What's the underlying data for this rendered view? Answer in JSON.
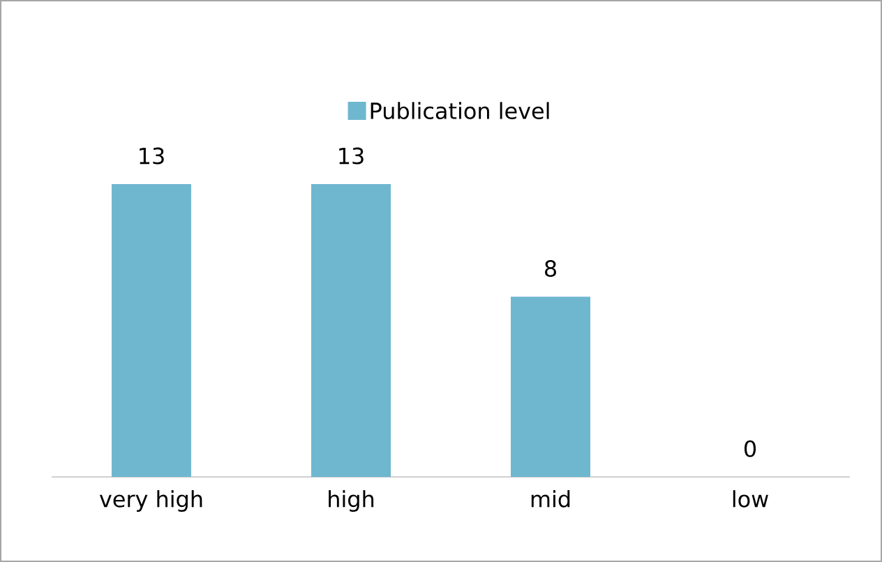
{
  "chart_data": {
    "type": "bar",
    "categories": [
      "very high",
      "high",
      "mid",
      "low"
    ],
    "series": [
      {
        "name": "Publication level",
        "color": "#6fb7cf",
        "values": [
          13,
          13,
          8,
          0
        ]
      }
    ],
    "data_labels": true,
    "legend": "top"
  }
}
